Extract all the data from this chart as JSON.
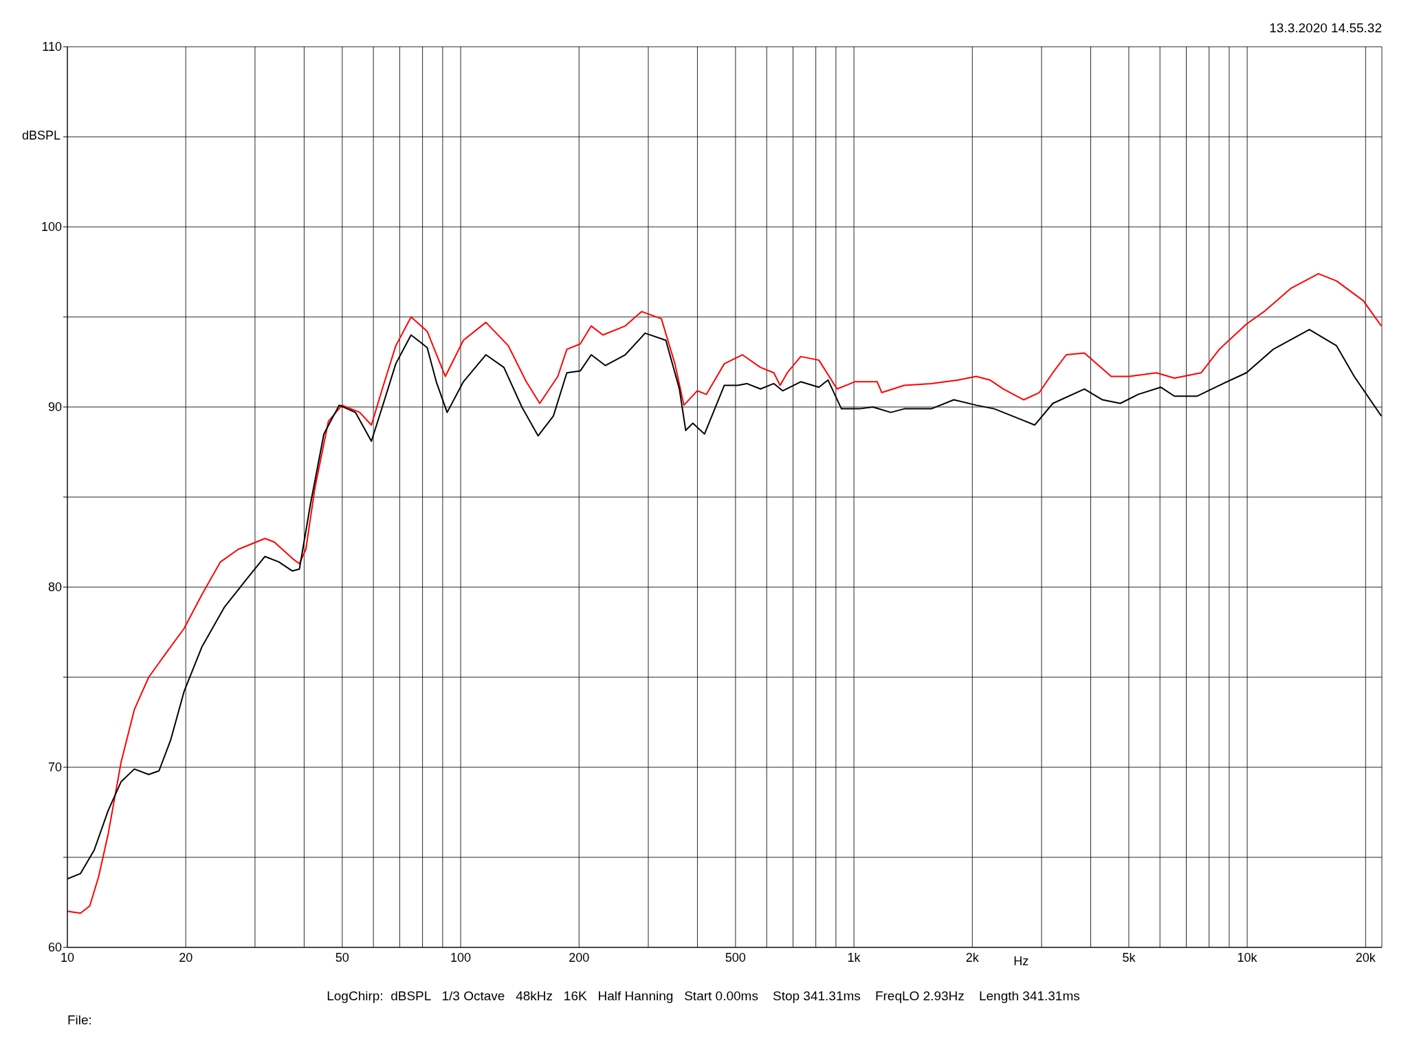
{
  "chart_data": {
    "type": "line",
    "xlabel": "Hz",
    "ylabel": "dBSPL",
    "annotations": [
      "13.3.2020 14.55.32",
      "LogChirp:  dBSPL   1/3 Octave   48kHz   16K   Half Hanning   Start 0.00ms    Stop 341.31ms    FreqLO 2.93Hz    Length 341.31ms",
      "File:"
    ],
    "log": "x",
    "grid": true,
    "marker": "none",
    "line_style": "solid",
    "xlim": [
      10,
      22000
    ],
    "xticks": [
      10,
      20,
      {
        "value": 30,
        "label": null
      },
      {
        "value": 40,
        "label": null
      },
      50,
      {
        "value": 60,
        "label": null
      },
      {
        "value": 70,
        "label": null
      },
      {
        "value": 80,
        "label": null
      },
      {
        "value": 90,
        "label": null
      },
      100,
      200,
      {
        "value": 300,
        "label": null
      },
      {
        "value": 400,
        "label": null
      },
      500,
      {
        "value": 600,
        "label": null
      },
      {
        "value": 700,
        "label": null
      },
      {
        "value": 800,
        "label": null
      },
      {
        "value": 900,
        "label": null
      },
      {
        "value": 1000,
        "label": "1k"
      },
      {
        "value": 2000,
        "label": "2k"
      },
      {
        "value": 3000,
        "label": null
      },
      {
        "value": 4000,
        "label": null
      },
      {
        "value": 5000,
        "label": "5k"
      },
      {
        "value": 6000,
        "label": null
      },
      {
        "value": 7000,
        "label": null
      },
      {
        "value": 8000,
        "label": null
      },
      {
        "value": 9000,
        "label": null
      },
      {
        "value": 10000,
        "label": "10k"
      },
      {
        "value": 20000,
        "label": "20k"
      }
    ],
    "ylim": [
      60,
      110
    ],
    "yticks": [
      60,
      {
        "value": 65,
        "label": null
      },
      70,
      {
        "value": 75,
        "label": null
      },
      80,
      {
        "value": 85,
        "label": null
      },
      90,
      {
        "value": 95,
        "label": null
      },
      100,
      {
        "value": 105,
        "label": null
      },
      110
    ],
    "series": [
      {
        "color": "#ff0000",
        "x": [
          10,
          10.8,
          11.4,
          12.0,
          12.7,
          13.7,
          14.8,
          16.1,
          17.9,
          19.8,
          22.0,
          24.5,
          27.2,
          31.8,
          33.6,
          37.3,
          38.9,
          40.4,
          42.6,
          46.1,
          49.9,
          55.4,
          59.3,
          63.2,
          68.4,
          74.8,
          82.2,
          91.4,
          101.6,
          115.9,
          132.2,
          146.9,
          158.9,
          176.6,
          186.2,
          201.4,
          214.8,
          230,
          262.2,
          288.4,
          323.9,
          350.6,
          369.6,
          399.7,
          421.4,
          468.1,
          520.3,
          578.5,
          625.6,
          649.1,
          676.9,
          732.3,
          814.7,
          905.8,
          1005,
          1146,
          1177,
          1343,
          1573,
          1841,
          2046,
          2217,
          2399,
          2704,
          2959,
          3204,
          3467,
          3855,
          4510,
          5012,
          5875,
          6531,
          7638,
          8492,
          9953,
          11040,
          12940,
          15170,
          16870,
          19730,
          21930
        ],
        "values": [
          62.0,
          61.9,
          62.3,
          63.9,
          66.3,
          70.3,
          73.2,
          75.0,
          76.4,
          77.7,
          79.6,
          81.4,
          82.1,
          82.7,
          82.5,
          81.6,
          81.3,
          82.1,
          85.5,
          89.2,
          90.1,
          89.7,
          89.0,
          91.0,
          93.4,
          95.0,
          94.2,
          91.7,
          93.7,
          94.7,
          93.4,
          91.4,
          90.2,
          91.7,
          93.2,
          93.5,
          94.5,
          94.0,
          94.5,
          95.3,
          94.9,
          92.4,
          90.1,
          90.9,
          90.7,
          92.4,
          92.9,
          92.2,
          91.9,
          91.2,
          91.9,
          92.8,
          92.6,
          91.0,
          91.4,
          91.4,
          90.8,
          91.2,
          91.3,
          91.5,
          91.7,
          91.5,
          91.0,
          90.4,
          90.8,
          91.9,
          92.9,
          93.0,
          91.7,
          91.7,
          91.9,
          91.6,
          91.9,
          93.2,
          94.6,
          95.3,
          96.6,
          97.4,
          97.0,
          95.9,
          94.5
        ]
      },
      {
        "color": "#000000",
        "x": [
          10,
          10.8,
          11.7,
          12.7,
          13.7,
          14.8,
          16.1,
          17.1,
          18.3,
          19.8,
          22.0,
          25.1,
          28.7,
          31.8,
          34.5,
          37.3,
          38.9,
          41.5,
          44.9,
          49.1,
          54.0,
          59.3,
          63.2,
          68.4,
          74.8,
          82.2,
          86.7,
          92.4,
          101.6,
          115.9,
          128.8,
          143.1,
          157.4,
          172.1,
          186.2,
          201.4,
          214.8,
          233.4,
          262.2,
          294.5,
          332.5,
          359.9,
          373.5,
          389.3,
          416.9,
          468.1,
          506.8,
          534.1,
          578.5,
          625.6,
          659.4,
          732.3,
          814.7,
          859.1,
          929.5,
          1032,
          1117,
          1241,
          1343,
          1573,
          1795,
          2046,
          2274,
          2666,
          2883,
          3204,
          3855,
          4286,
          4757,
          5284,
          6026,
          6531,
          7447,
          8492,
          9953,
          11640,
          14390,
          16870,
          18710,
          21930
        ],
        "values": [
          63.8,
          64.1,
          65.4,
          67.6,
          69.2,
          69.9,
          69.6,
          69.8,
          71.5,
          74.2,
          76.7,
          78.9,
          80.5,
          81.7,
          81.4,
          80.9,
          81.0,
          84.6,
          88.5,
          90.1,
          89.7,
          88.1,
          90.0,
          92.4,
          94.0,
          93.3,
          91.4,
          89.7,
          91.4,
          92.9,
          92.2,
          90.0,
          88.4,
          89.5,
          91.9,
          92.0,
          92.9,
          92.3,
          92.9,
          94.1,
          93.7,
          91.0,
          88.7,
          89.1,
          88.5,
          91.2,
          91.2,
          91.3,
          91.0,
          91.3,
          90.9,
          91.4,
          91.1,
          91.5,
          89.9,
          89.9,
          90.0,
          89.7,
          89.9,
          89.9,
          90.4,
          90.1,
          89.9,
          89.3,
          89.0,
          90.2,
          91.0,
          90.4,
          90.2,
          90.7,
          91.1,
          90.6,
          90.6,
          91.2,
          91.9,
          93.2,
          94.3,
          93.4,
          91.7,
          89.5
        ]
      }
    ]
  }
}
